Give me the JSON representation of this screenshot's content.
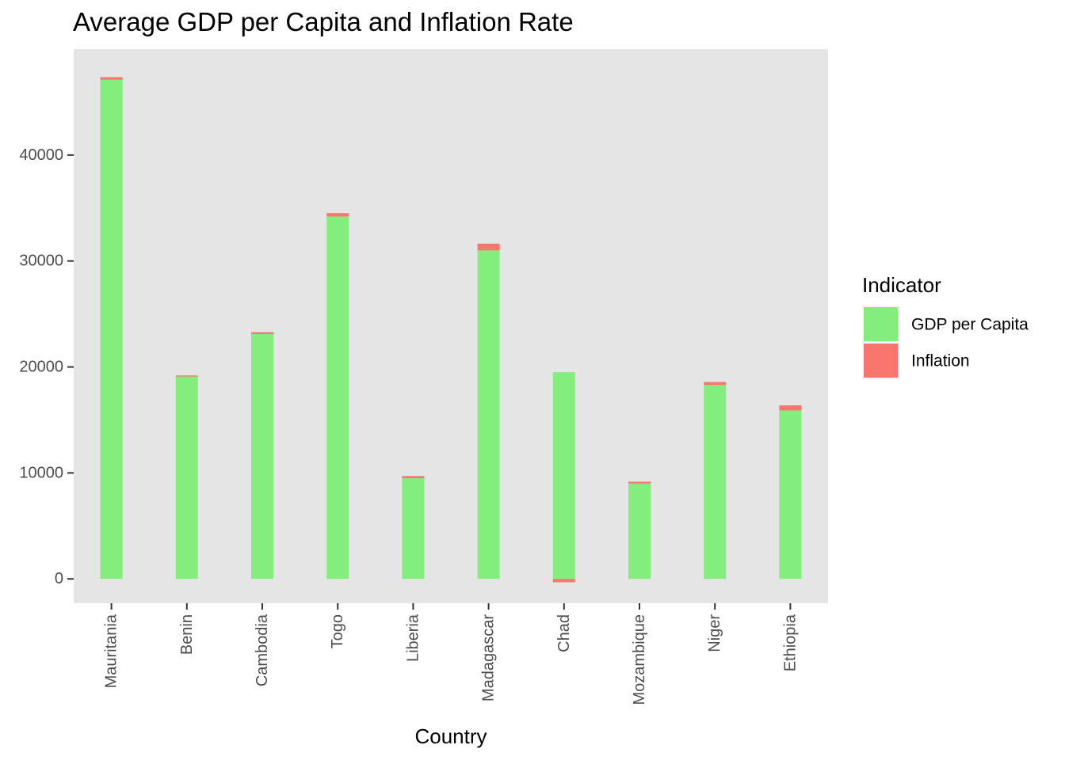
{
  "chart_data": {
    "type": "bar",
    "stacked": true,
    "title": "Average GDP per Capita and Inflation Rate",
    "xlabel": "Country",
    "ylabel": "",
    "categories": [
      "Mauritania",
      "Benin",
      "Cambodia",
      "Togo",
      "Liberia",
      "Madagascar",
      "Chad",
      "Mozambique",
      "Niger",
      "Ethiopia"
    ],
    "series": [
      {
        "name": "GDP per Capita",
        "color": "#83ed7e",
        "values": [
          47100,
          19100,
          23100,
          34200,
          9500,
          31000,
          19500,
          9000,
          18300,
          15900
        ]
      },
      {
        "name": "Inflation",
        "color": "#f8766d",
        "values": [
          250,
          100,
          180,
          320,
          200,
          640,
          -320,
          170,
          280,
          480
        ]
      }
    ],
    "ylim": [
      -2300,
      50000
    ],
    "yticks": [
      0,
      10000,
      20000,
      30000,
      40000
    ],
    "ytick_labels": [
      "0",
      "10000",
      "20000",
      "30000",
      "40000"
    ],
    "legend": {
      "title": "Indicator",
      "position": "right"
    },
    "panel_background": "#e5e5e5",
    "grid": false
  }
}
